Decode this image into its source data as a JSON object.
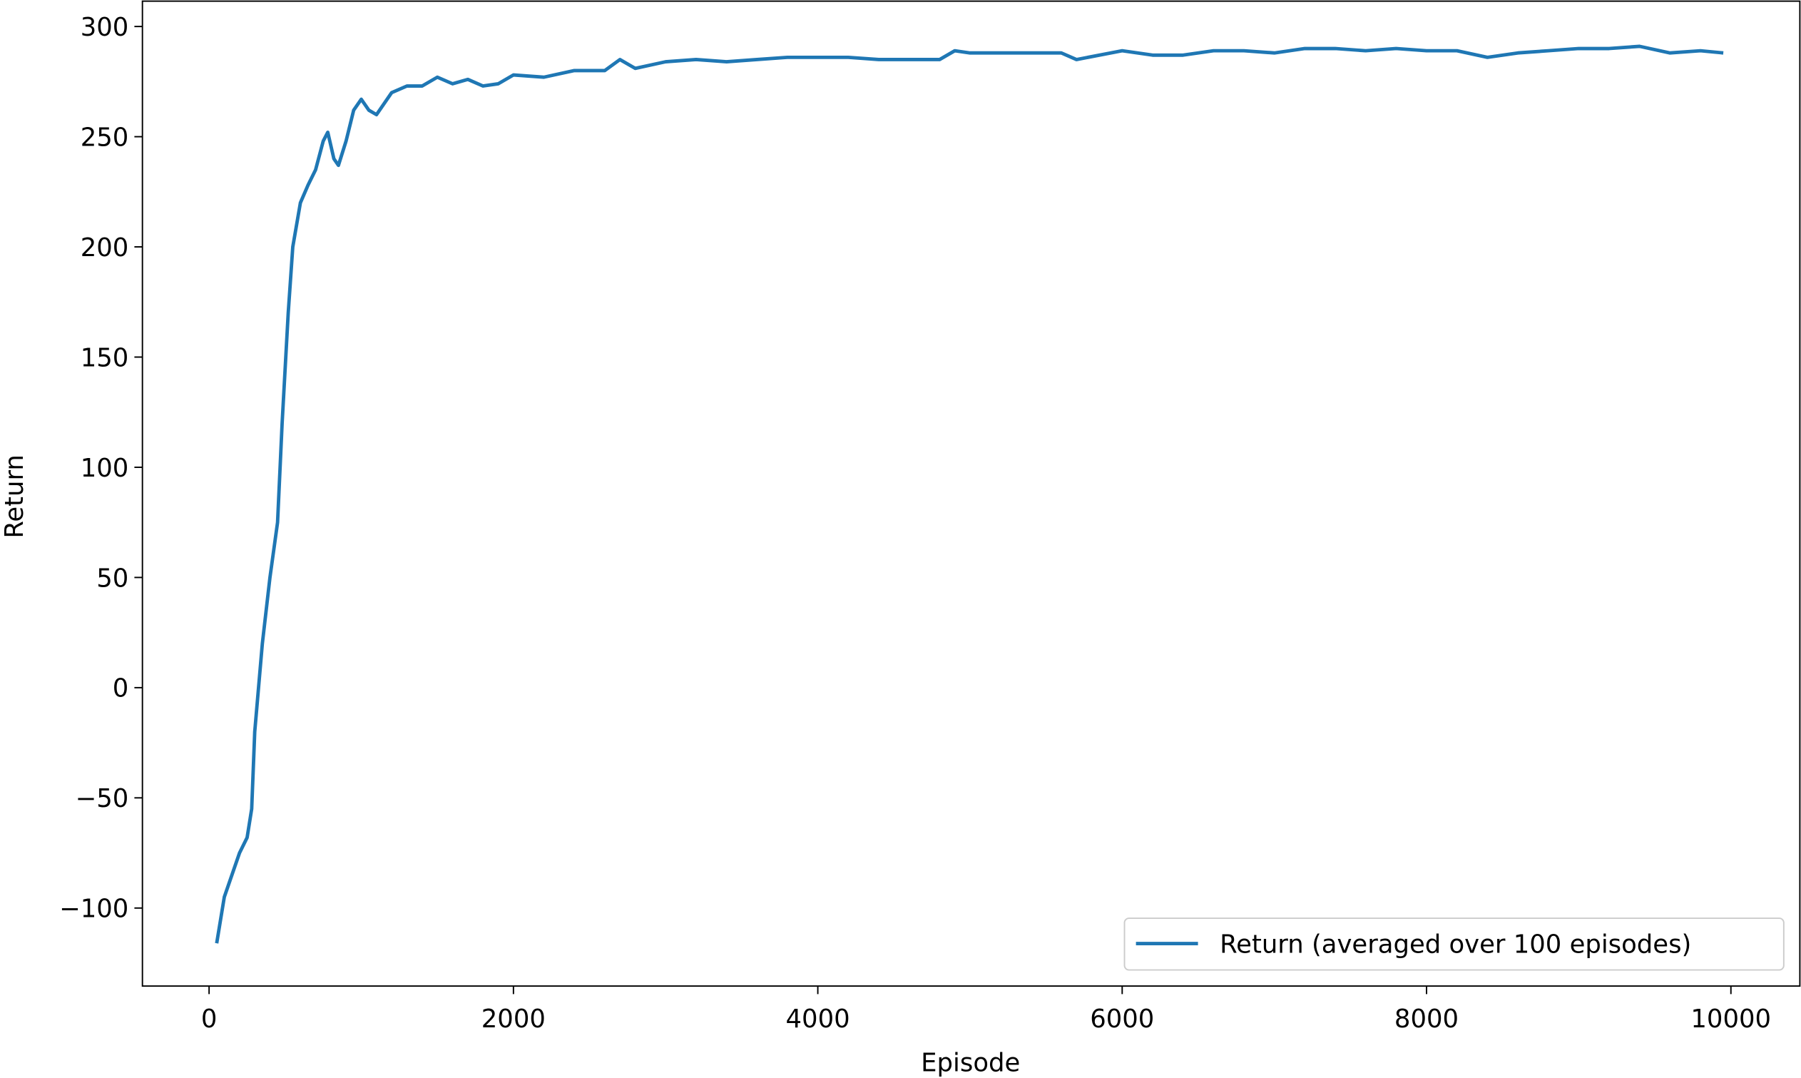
{
  "chart_data": {
    "type": "line",
    "x_label": "Episode",
    "y_label": "Return",
    "x": [
      50,
      100,
      150,
      200,
      250,
      280,
      300,
      350,
      400,
      450,
      480,
      520,
      550,
      600,
      650,
      700,
      750,
      780,
      820,
      850,
      900,
      950,
      1000,
      1050,
      1100,
      1200,
      1300,
      1400,
      1500,
      1600,
      1700,
      1800,
      1900,
      2000,
      2200,
      2400,
      2600,
      2700,
      2800,
      3000,
      3200,
      3400,
      3600,
      3800,
      4000,
      4200,
      4400,
      4600,
      4800,
      4900,
      5000,
      5200,
      5400,
      5600,
      5700,
      6000,
      6200,
      6400,
      6600,
      6800,
      7000,
      7200,
      7400,
      7600,
      7800,
      8000,
      8200,
      8400,
      8600,
      8800,
      9000,
      9200,
      9400,
      9600,
      9800,
      9950
    ],
    "series": [
      {
        "name": "Return (averaged over 100 episodes)",
        "color": "#1f77b4",
        "values": [
          -116,
          -95,
          -85,
          -75,
          -68,
          -55,
          -20,
          20,
          50,
          75,
          120,
          170,
          200,
          220,
          228,
          235,
          248,
          252,
          240,
          237,
          248,
          262,
          267,
          262,
          260,
          270,
          273,
          273,
          277,
          274,
          276,
          273,
          274,
          278,
          277,
          280,
          280,
          285,
          281,
          284,
          285,
          284,
          285,
          286,
          286,
          286,
          285,
          285,
          285,
          289,
          288,
          288,
          288,
          288,
          285,
          289,
          287,
          287,
          289,
          289,
          288,
          290,
          290,
          289,
          290,
          289,
          289,
          286,
          288,
          289,
          290,
          290,
          291,
          288,
          289,
          288
        ]
      }
    ],
    "xlim": [
      -438,
      10453
    ],
    "ylim": [
      -135.4,
      311.5
    ],
    "xticks": [
      0,
      2000,
      4000,
      6000,
      8000,
      10000
    ],
    "yticks": [
      {
        "value": -100,
        "label": "−100"
      },
      {
        "value": -50,
        "label": "−50"
      },
      0,
      50,
      100,
      150,
      200,
      250,
      300
    ],
    "legend": "lower right"
  }
}
